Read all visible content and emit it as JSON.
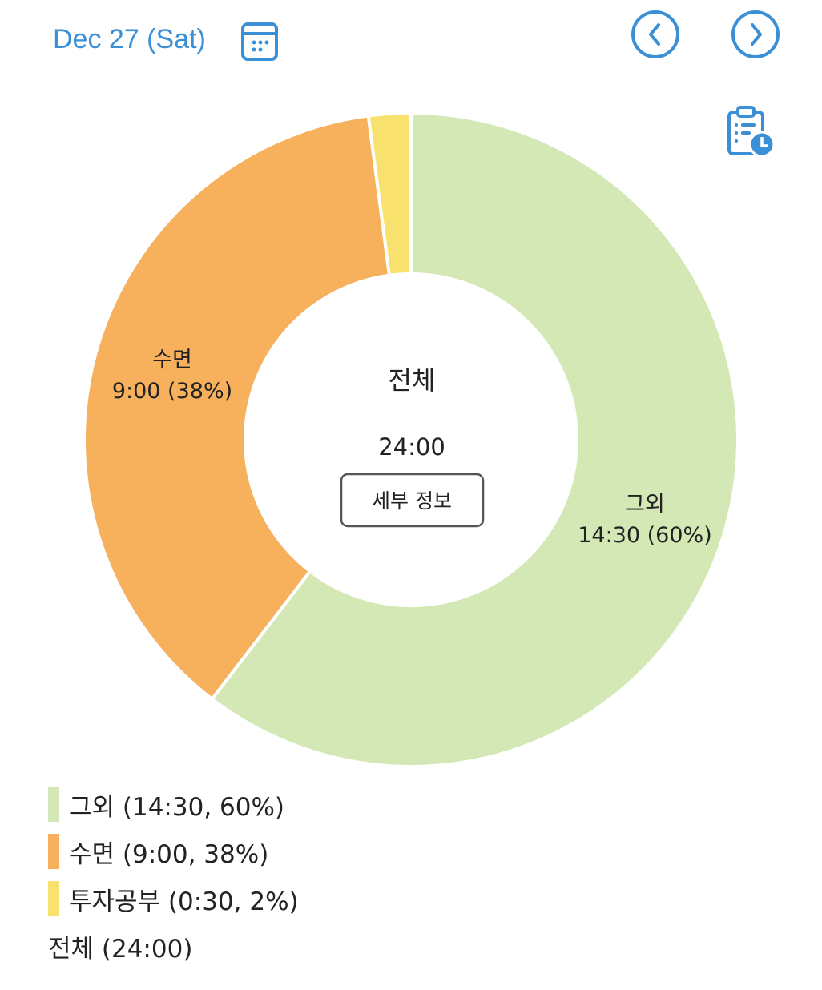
{
  "header": {
    "date": "Dec 27 (Sat)",
    "calendar_icon": "calendar-icon",
    "prev_icon": "chevron-left-circle-icon",
    "next_icon": "chevron-right-circle-icon",
    "history_icon": "clipboard-clock-icon",
    "accent": "#3a8fd6"
  },
  "center": {
    "title": "전체",
    "total": "24:00",
    "details_button": "세부 정보"
  },
  "chart_data": {
    "type": "pie",
    "donut": true,
    "total": "24:00",
    "slices": [
      {
        "name": "그외",
        "time": "14:30",
        "percent": 60,
        "hours": 14.5,
        "color": "#d4e8b6",
        "label": "14:30 (60%)",
        "legend": "그외 (14:30, 60%)"
      },
      {
        "name": "수면",
        "time": "9:00",
        "percent": 38,
        "hours": 9,
        "color": "#f7b05b",
        "label": "9:00 (38%)",
        "legend": "수면 (9:00, 38%)"
      },
      {
        "name": "투자공부",
        "time": "0:30",
        "percent": 2,
        "hours": 0.5,
        "color": "#f8e16c",
        "label": "",
        "legend": "투자공부 (0:30, 2%)"
      }
    ],
    "legend_total": "전체 (24:00)",
    "legend_position": "bottom-left"
  }
}
